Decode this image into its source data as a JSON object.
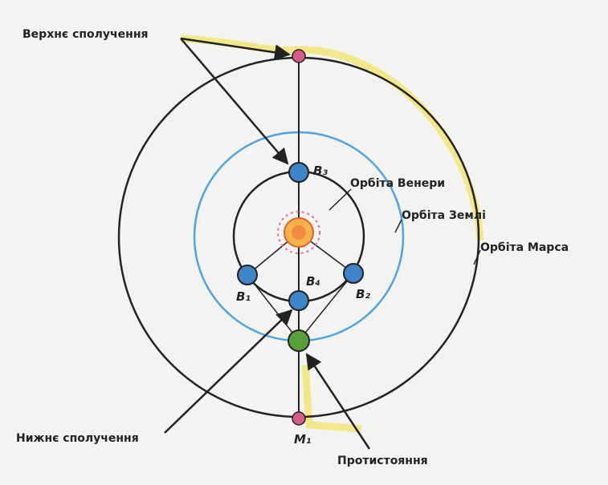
{
  "labels": {
    "superior_conjunction": "Верхнє сполучення",
    "venus_orbit": "Орбіта Венери",
    "earth_orbit": "Орбіта Землі",
    "mars_orbit": "Орбіта Марса",
    "inferior_conjunction": "Нижнє сполучення",
    "opposition": "Протистояння"
  },
  "points": {
    "b3": "B₃",
    "b1": "B₁",
    "b2": "B₂",
    "b4": "B₄",
    "m1": "M₁"
  }
}
